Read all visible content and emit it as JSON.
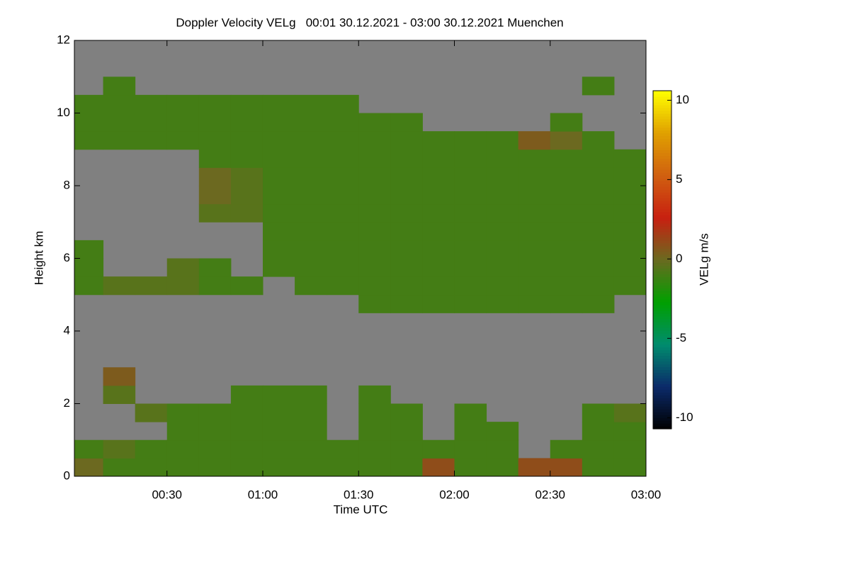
{
  "chart_data": {
    "type": "heatmap",
    "title": "Doppler Velocity VELg   00:01 30.12.2021 - 03:00 30.12.2021 Muenchen",
    "x_label": "Time UTC",
    "y_label": "Height km",
    "colorbar_label": "VELg m/s",
    "x": [
      5,
      15,
      25,
      35,
      45,
      55,
      65,
      75,
      85,
      95,
      105,
      115,
      125,
      135,
      145,
      155,
      165,
      175
    ],
    "y": [
      0.25,
      0.75,
      1.25,
      1.75,
      2.25,
      2.75,
      3.25,
      3.75,
      4.25,
      4.75,
      5.25,
      5.75,
      6.25,
      6.75,
      7.25,
      7.75,
      8.25,
      8.75,
      9.25,
      9.75,
      10.25,
      10.75,
      11.25,
      11.75
    ],
    "z": [
      [
        0,
        -1,
        -1,
        -1,
        -1,
        -1,
        -1,
        -1,
        -1,
        -1,
        -1,
        1,
        -1,
        -1,
        1,
        1,
        -1,
        -1
      ],
      [
        -1,
        -0.5,
        -1,
        -1,
        -1,
        -1,
        -1,
        -1,
        -1,
        -1,
        -1,
        -1,
        -1,
        -1,
        null,
        -1,
        -1,
        -1
      ],
      [
        null,
        null,
        null,
        -1,
        -1,
        -1,
        -1,
        -1,
        null,
        -1,
        -1,
        null,
        -1,
        -1,
        null,
        null,
        -1,
        -1
      ],
      [
        null,
        null,
        -0.5,
        -1,
        -1,
        -1,
        -1,
        -1,
        null,
        -1,
        -1,
        null,
        -1,
        null,
        null,
        null,
        -1,
        -0.5
      ],
      [
        null,
        -0.5,
        null,
        null,
        null,
        -1,
        -1,
        -1,
        null,
        -1,
        null,
        null,
        null,
        null,
        null,
        null,
        null,
        null
      ],
      [
        null,
        0.5,
        null,
        null,
        null,
        null,
        null,
        null,
        null,
        null,
        null,
        null,
        null,
        null,
        null,
        null,
        null,
        null
      ],
      [
        null,
        null,
        null,
        null,
        null,
        null,
        null,
        null,
        null,
        null,
        null,
        null,
        null,
        null,
        null,
        null,
        null,
        null
      ],
      [
        null,
        null,
        null,
        null,
        null,
        null,
        null,
        null,
        null,
        null,
        null,
        null,
        null,
        null,
        null,
        null,
        null,
        null
      ],
      [
        null,
        null,
        null,
        null,
        null,
        null,
        null,
        null,
        null,
        null,
        null,
        null,
        null,
        null,
        null,
        null,
        null,
        null
      ],
      [
        null,
        null,
        null,
        null,
        null,
        null,
        null,
        null,
        null,
        -1,
        -1,
        -1,
        -1,
        -1,
        -1,
        -1,
        -1,
        null
      ],
      [
        -1,
        -0.5,
        -0.5,
        -0.5,
        -1,
        -1,
        null,
        -1,
        -1,
        -1,
        -1,
        -1,
        -1,
        -1,
        -1,
        -1,
        -1,
        -1
      ],
      [
        -1,
        null,
        null,
        -0.5,
        -1,
        null,
        -1,
        -1,
        -1,
        -1,
        -1,
        -1,
        -1,
        -1,
        -1,
        -1,
        -1,
        -1
      ],
      [
        -1,
        null,
        null,
        null,
        null,
        null,
        -1,
        -1,
        -1,
        -1,
        -1,
        -1,
        -1,
        -1,
        -1,
        -1,
        -1,
        -1
      ],
      [
        null,
        null,
        null,
        null,
        null,
        null,
        -1,
        -1,
        -1,
        -1,
        -1,
        -1,
        -1,
        -1,
        -1,
        -1,
        -1,
        -1
      ],
      [
        null,
        null,
        null,
        null,
        -0.5,
        -0.5,
        -1,
        -1,
        -1,
        -1,
        -1,
        -1,
        -1,
        -1,
        -1,
        -1,
        -1,
        -1
      ],
      [
        null,
        null,
        null,
        null,
        0,
        -0.5,
        -1,
        -1,
        -1,
        -1,
        -1,
        -1,
        -1,
        -1,
        -1,
        -1,
        -1,
        -1
      ],
      [
        null,
        null,
        null,
        null,
        0,
        -0.5,
        -1,
        -1,
        -1,
        -1,
        -1,
        -1,
        -1,
        -1,
        -1,
        -1,
        -1,
        -1
      ],
      [
        null,
        null,
        null,
        null,
        -1,
        -1,
        -1,
        -1,
        -1,
        -1,
        -1,
        -1,
        -1,
        -1,
        -1,
        -1,
        -1,
        -1
      ],
      [
        -1,
        -1,
        -1,
        -1,
        -1,
        -1,
        -1,
        -1,
        -1,
        -1,
        -1,
        -1,
        -1,
        -1,
        0.5,
        0,
        -1,
        null
      ],
      [
        -1,
        -1,
        -1,
        -1,
        -1,
        -1,
        -1,
        -1,
        -1,
        -1,
        -1,
        null,
        null,
        null,
        null,
        -1,
        null,
        null
      ],
      [
        -1,
        -1,
        -1,
        -1,
        -1,
        -1,
        -1,
        -1,
        -1,
        null,
        null,
        null,
        null,
        null,
        null,
        null,
        null,
        null
      ],
      [
        null,
        -1,
        null,
        null,
        null,
        null,
        null,
        null,
        null,
        null,
        null,
        null,
        null,
        null,
        null,
        null,
        -1,
        null
      ],
      [
        null,
        null,
        null,
        null,
        null,
        null,
        null,
        null,
        null,
        null,
        null,
        null,
        null,
        null,
        null,
        null,
        null,
        null
      ],
      [
        null,
        null,
        null,
        null,
        null,
        null,
        null,
        null,
        null,
        null,
        null,
        null,
        null,
        null,
        null,
        null,
        null,
        null
      ]
    ],
    "xlim": [
      1,
      180
    ],
    "xticks": [
      {
        "value": 30,
        "label": "00:30"
      },
      {
        "value": 60,
        "label": "01:00"
      },
      {
        "value": 90,
        "label": "01:30"
      },
      {
        "value": 120,
        "label": "02:00"
      },
      {
        "value": 150,
        "label": "02:30"
      },
      {
        "value": 180,
        "label": "03:00"
      }
    ],
    "ylim": [
      0,
      12
    ],
    "yticks": [
      0,
      2,
      4,
      6,
      8,
      10,
      12
    ],
    "zlim": [
      -10.7,
      10.6
    ],
    "zticks": [
      -10,
      -5,
      0,
      5,
      10
    ],
    "colormap": [
      "#000000",
      "#0b2a6a",
      "#008c6e",
      "#00a000",
      "#6a6a20",
      "#c82010",
      "#d06010",
      "#e0a000",
      "#ffff00"
    ],
    "nodata_color": "#808080"
  }
}
